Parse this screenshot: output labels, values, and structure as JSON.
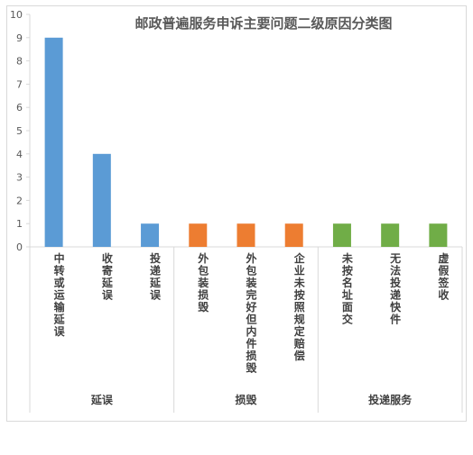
{
  "chart_data": {
    "type": "bar",
    "title": "邮政普遍服务申诉主要问题二级原因分类图",
    "categories": [
      "中转或运输延误",
      "收寄延误",
      "投递延误",
      "外包装损毁",
      "外包装完好但内件损毁",
      "企业未按照规定赔偿",
      "未按名址面交",
      "无法投递快件",
      "虚假签收"
    ],
    "groups": [
      {
        "name": "延误",
        "categories": [
          "中转或运输延误",
          "收寄延误",
          "投递延误"
        ],
        "color": "#5b9bd5"
      },
      {
        "name": "损毁",
        "categories": [
          "外包装损毁",
          "外包装完好但内件损毁",
          "企业未按照规定赔偿"
        ],
        "color": "#ed7d31"
      },
      {
        "name": "投递服务",
        "categories": [
          "未按名址面交",
          "无法投递快件",
          "虚假签收"
        ],
        "color": "#70ad47"
      }
    ],
    "values": [
      9,
      4,
      1,
      1,
      1,
      1,
      1,
      1,
      1
    ],
    "ylim": [
      0,
      10
    ],
    "yticks": [
      0,
      1,
      2,
      3,
      4,
      5,
      6,
      7,
      8,
      9,
      10
    ],
    "xlabel": "",
    "ylabel": "",
    "grid": false,
    "legend": "none"
  }
}
